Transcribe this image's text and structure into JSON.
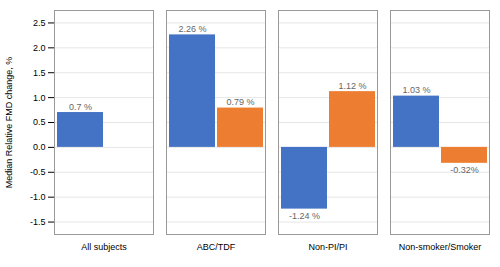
{
  "chart_data": {
    "type": "bar",
    "categories": [
      "All subjects",
      "ABC/TDF",
      "Non-PI/PI",
      "Non-smoker/Smoker"
    ],
    "series": [
      {
        "color": "#4472C4",
        "values": [
          0.7,
          2.26,
          -1.24,
          1.03
        ],
        "value_labels": [
          "0.7 %",
          "2.26 %",
          "-1.24 %",
          "1.03 %"
        ]
      },
      {
        "color": "#ED7D31",
        "values": [
          null,
          0.79,
          1.12,
          -0.32
        ],
        "value_labels": [
          null,
          "0.79 %",
          "1.12 %",
          "-0.32%"
        ]
      }
    ],
    "ylabel": "Median Relative FMD change, %",
    "ylim": [
      -1.75,
      2.75
    ],
    "yticks": [
      -1.5,
      {
        "value": -1.0,
        "label": "-1.0"
      },
      -0.5,
      {
        "value": 0.0,
        "label": "0.0"
      },
      0.5,
      {
        "value": 1.0,
        "label": "1.0"
      },
      1.5,
      {
        "value": 2.0,
        "label": "2.0"
      },
      2.5
    ],
    "grid": true,
    "data_labels": true
  }
}
